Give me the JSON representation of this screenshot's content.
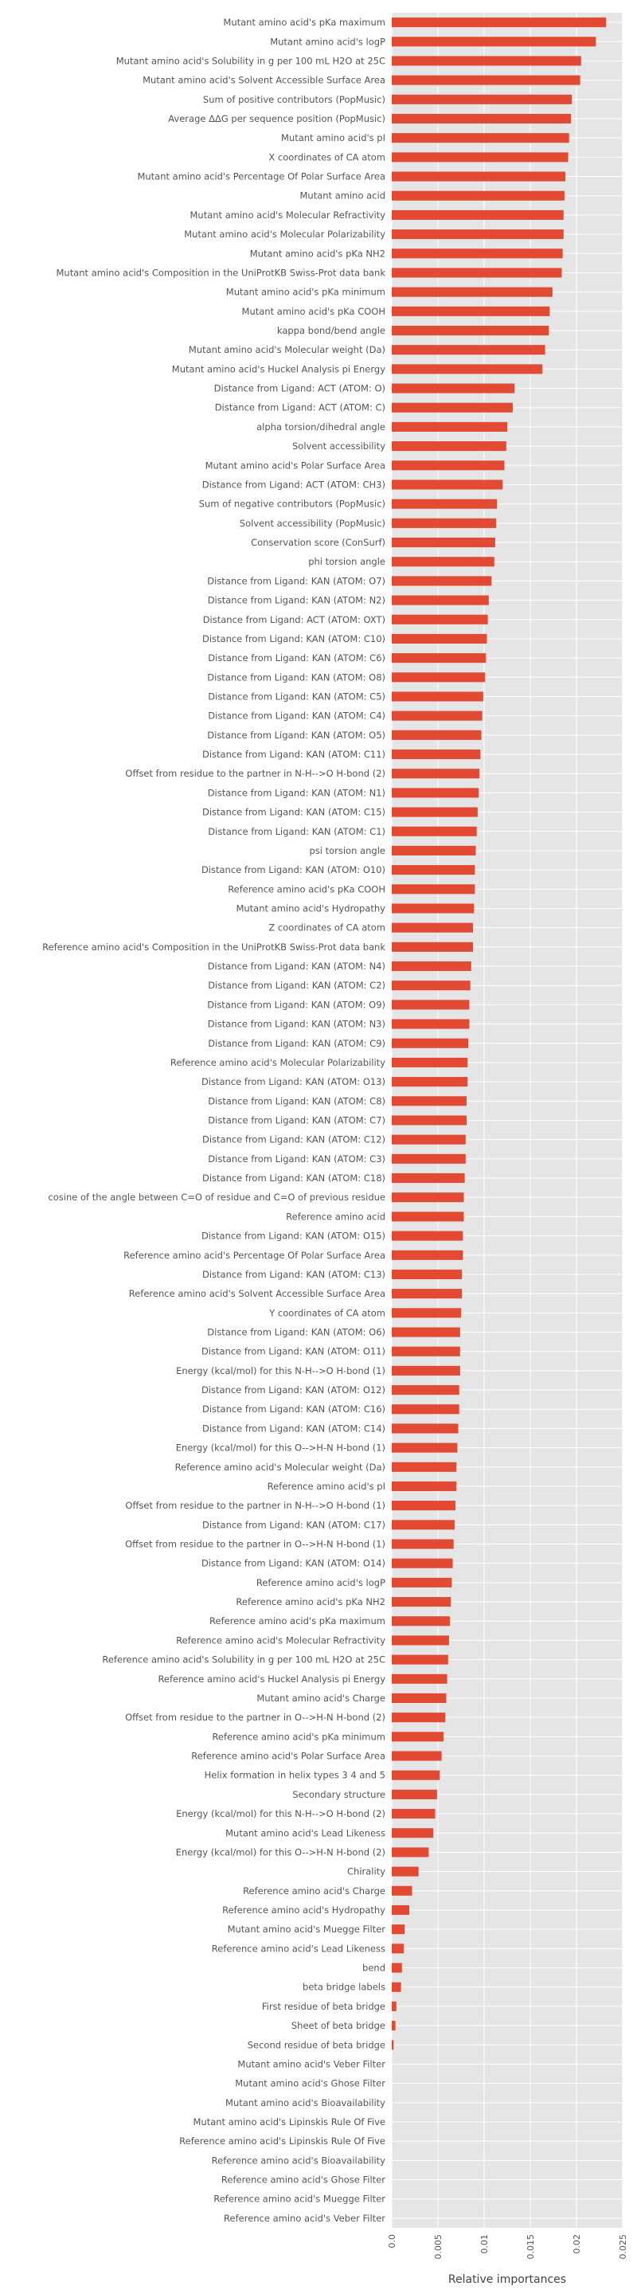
{
  "chart_data": {
    "type": "bar",
    "orientation": "horizontal",
    "title": "",
    "xlabel": "Relative importances",
    "ylabel": "",
    "xlim": [
      0,
      0.025
    ],
    "xticks": [
      "0.0",
      "0.005",
      "0.01",
      "0.015",
      "0.02",
      "0.025"
    ],
    "grid": true,
    "background": "#e5e5e5",
    "bar_color": "#e24a33",
    "categories": [
      "Mutant amino acid's pKa maximum",
      "Mutant amino acid's logP",
      "Mutant amino acid's Solubility in g per 100 mL H2O at 25C",
      "Mutant amino acid's Solvent Accessible Surface Area",
      "Sum of positive contributors (PopMusic)",
      "Average ΔΔG per sequence position (PopMusic)",
      "Mutant amino acid's pI",
      "X coordinates of CA atom",
      "Mutant amino acid's Percentage Of Polar Surface Area",
      "Mutant amino acid",
      "Mutant amino acid's Molecular Refractivity",
      "Mutant amino acid's Molecular Polarizability",
      "Mutant amino acid's pKa NH2",
      "Mutant amino acid's Composition in the UniProtKB Swiss-Prot data bank",
      "Mutant amino acid's pKa minimum",
      "Mutant amino acid's pKa COOH",
      "kappa bond/bend angle",
      "Mutant amino acid's Molecular weight (Da)",
      "Mutant amino acid's Huckel Analysis pi Energy",
      "Distance from Ligand: ACT (ATOM: O)",
      "Distance from Ligand: ACT (ATOM: C)",
      "alpha torsion/dihedral angle",
      "Solvent accessibility",
      "Mutant amino acid's Polar Surface Area",
      "Distance from Ligand: ACT (ATOM: CH3)",
      "Sum of negative contributors (PopMusic)",
      "Solvent accessibility (PopMusic)",
      "Conservation score (ConSurf)",
      "phi torsion angle",
      "Distance from Ligand: KAN (ATOM: O7)",
      "Distance from Ligand: KAN (ATOM: N2)",
      "Distance from Ligand: ACT (ATOM: OXT)",
      "Distance from Ligand: KAN (ATOM: C10)",
      "Distance from Ligand: KAN (ATOM: C6)",
      "Distance from Ligand: KAN (ATOM: O8)",
      "Distance from Ligand: KAN (ATOM: C5)",
      "Distance from Ligand: KAN (ATOM: C4)",
      "Distance from Ligand: KAN (ATOM: O5)",
      "Distance from Ligand: KAN (ATOM: C11)",
      "Offset from residue to the partner in N-H-->O H-bond (2)",
      "Distance from Ligand: KAN (ATOM: N1)",
      "Distance from Ligand: KAN (ATOM: C15)",
      "Distance from Ligand: KAN (ATOM: C1)",
      "psi torsion angle",
      "Distance from Ligand: KAN (ATOM: O10)",
      "Reference amino acid's pKa COOH",
      "Mutant amino acid's Hydropathy",
      "Z coordinates of CA atom",
      "Reference amino acid's Composition in the UniProtKB Swiss-Prot data bank",
      "Distance from Ligand: KAN (ATOM: N4)",
      "Distance from Ligand: KAN (ATOM: C2)",
      "Distance from Ligand: KAN (ATOM: O9)",
      "Distance from Ligand: KAN (ATOM: N3)",
      "Distance from Ligand: KAN (ATOM: C9)",
      "Reference amino acid's Molecular Polarizability",
      "Distance from Ligand: KAN (ATOM: O13)",
      "Distance from Ligand: KAN (ATOM: C8)",
      "Distance from Ligand: KAN (ATOM: C7)",
      "Distance from Ligand: KAN (ATOM: C12)",
      "Distance from Ligand: KAN (ATOM: C3)",
      "Distance from Ligand: KAN (ATOM: C18)",
      "cosine of the angle between C=O of residue and C=O of previous residue",
      "Reference amino acid",
      "Distance from Ligand: KAN (ATOM: O15)",
      "Reference amino acid's Percentage Of Polar Surface Area",
      "Distance from Ligand: KAN (ATOM: C13)",
      "Reference amino acid's Solvent Accessible Surface Area",
      "Y coordinates of CA atom",
      "Distance from Ligand: KAN (ATOM: O6)",
      "Distance from Ligand: KAN (ATOM: O11)",
      "Energy (kcal/mol) for this N-H-->O H-bond (1)",
      "Distance from Ligand: KAN (ATOM: O12)",
      "Distance from Ligand: KAN (ATOM: C16)",
      "Distance from Ligand: KAN (ATOM: C14)",
      "Energy (kcal/mol) for this O-->H-N H-bond (1)",
      "Reference amino acid's Molecular weight (Da)",
      "Reference amino acid's pI",
      "Offset from residue to the partner in N-H-->O H-bond (1)",
      "Distance from Ligand: KAN (ATOM: C17)",
      "Offset from residue to the partner in O-->H-N H-bond (1)",
      "Distance from Ligand: KAN (ATOM: O14)",
      "Reference amino acid's logP",
      "Reference amino acid's pKa NH2",
      "Reference amino acid's pKa maximum",
      "Reference amino acid's Molecular Refractivity",
      "Reference amino acid's Solubility in g per 100 mL H2O at 25C",
      "Reference amino acid's Huckel Analysis pi Energy",
      "Mutant amino acid's Charge",
      "Offset from residue to the partner in O-->H-N H-bond (2)",
      "Reference amino acid's pKa minimum",
      "Reference amino acid's Polar Surface Area",
      "Helix formation in helix types 3 4 and 5",
      "Secondary structure",
      "Energy (kcal/mol) for this N-H-->O H-bond (2)",
      "Mutant amino acid's Lead Likeness",
      "Energy (kcal/mol) for this O-->H-N H-bond (2)",
      "Chirality",
      "Reference amino acid's Charge",
      "Reference amino acid's Hydropathy",
      "Mutant amino acid's Muegge Filter",
      "Reference amino acid's Lead Likeness",
      "bend",
      "beta bridge labels",
      "First residue of beta bridge",
      "Sheet of beta bridge",
      "Second residue of beta bridge",
      "Mutant amino acid's Veber Filter",
      "Mutant amino acid's Ghose Filter",
      "Mutant amino acid's Bioavailability",
      "Mutant amino acid's Lipinskis Rule Of Five",
      "Reference amino acid's Lipinskis Rule Of Five",
      "Reference amino acid's Bioavailability",
      "Reference amino acid's Ghose Filter",
      "Reference amino acid's Muegge Filter",
      "Reference amino acid's Veber Filter"
    ],
    "values": [
      0.0232,
      0.0221,
      0.0205,
      0.0204,
      0.0195,
      0.0194,
      0.0192,
      0.0191,
      0.0188,
      0.0187,
      0.0186,
      0.0186,
      0.0185,
      0.0184,
      0.0174,
      0.0171,
      0.017,
      0.0166,
      0.0163,
      0.0133,
      0.0131,
      0.0125,
      0.0124,
      0.0122,
      0.012,
      0.0114,
      0.0113,
      0.0112,
      0.0111,
      0.0108,
      0.0105,
      0.0104,
      0.0103,
      0.0102,
      0.0101,
      0.0099,
      0.0098,
      0.0097,
      0.0096,
      0.0095,
      0.0094,
      0.0093,
      0.0092,
      0.0091,
      0.009,
      0.009,
      0.0089,
      0.0088,
      0.0088,
      0.0086,
      0.0085,
      0.0084,
      0.0084,
      0.0083,
      0.0082,
      0.0082,
      0.0081,
      0.0081,
      0.008,
      0.008,
      0.0079,
      0.0078,
      0.0078,
      0.0077,
      0.0077,
      0.0076,
      0.0076,
      0.0075,
      0.0074,
      0.0074,
      0.0074,
      0.0073,
      0.0073,
      0.0072,
      0.0071,
      0.007,
      0.007,
      0.0069,
      0.0068,
      0.0067,
      0.0066,
      0.0065,
      0.0064,
      0.0063,
      0.0062,
      0.0061,
      0.006,
      0.0059,
      0.0058,
      0.0056,
      0.0054,
      0.0052,
      0.0049,
      0.0047,
      0.0045,
      0.004,
      0.0029,
      0.0022,
      0.0019,
      0.0014,
      0.0013,
      0.0011,
      0.001,
      0.0005,
      0.0004,
      0.0002,
      0,
      0,
      0,
      0,
      0,
      0,
      0,
      0,
      0
    ]
  }
}
